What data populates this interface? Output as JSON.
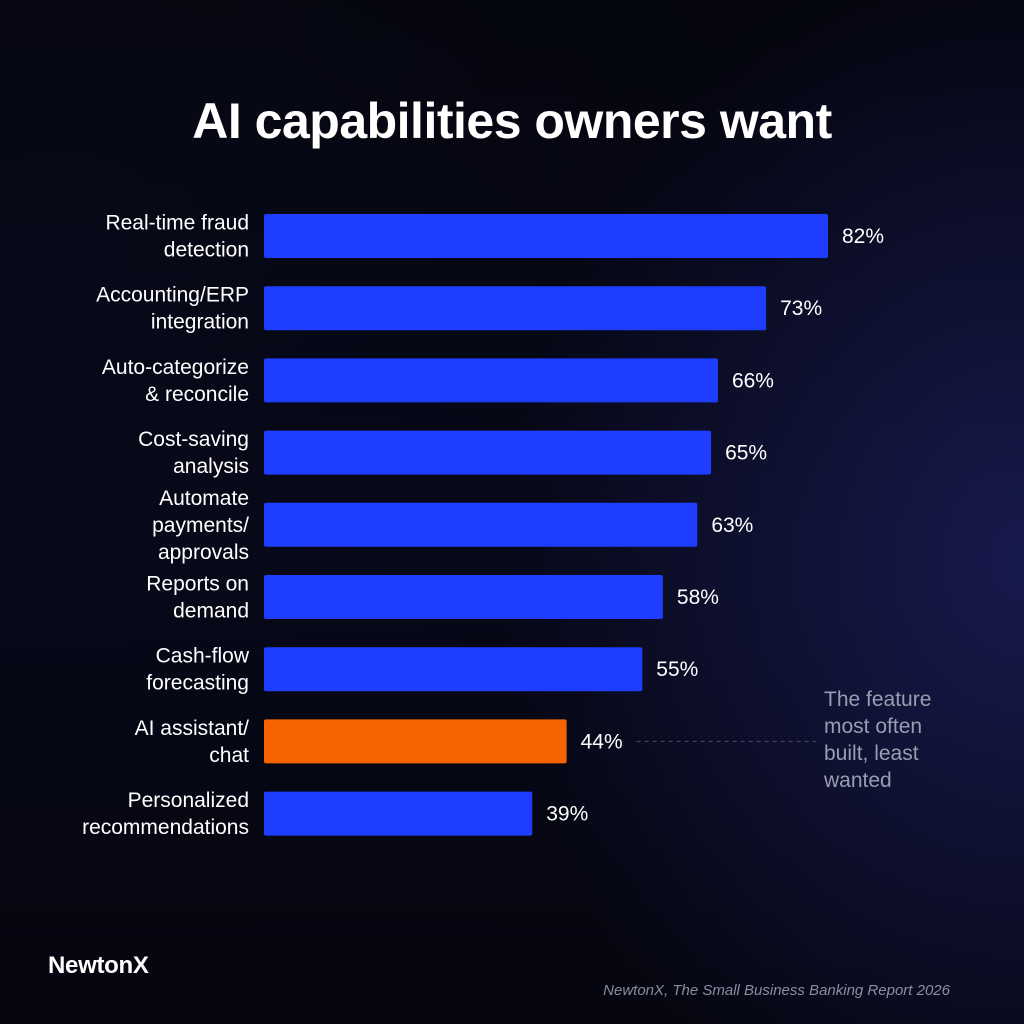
{
  "colors": {
    "bar": "#1f3dff",
    "highlight": "#f56400",
    "annotation_text": "#9a9cb0",
    "leader_line": "#4a4c66"
  },
  "annotation": {
    "lines": [
      "The feature",
      "most often",
      "built, least",
      "wanted"
    ],
    "target_category_index": 7
  },
  "brand": "NewtonX",
  "source": "NewtonX, The Small Business Banking Report 2026",
  "chart_data": {
    "type": "bar",
    "orientation": "horizontal",
    "title": "AI capabilities owners want",
    "unit": "%",
    "grid": false,
    "xlim": [
      0,
      100
    ],
    "categories": [
      [
        "Real-time fraud",
        "detection"
      ],
      [
        "Accounting/ERP",
        "integration"
      ],
      [
        "Auto-categorize",
        "& reconcile"
      ],
      [
        "Cost-saving",
        "analysis"
      ],
      [
        "Automate",
        "payments/",
        "approvals"
      ],
      [
        "Reports on",
        "demand"
      ],
      [
        "Cash-flow",
        "forecasting"
      ],
      [
        "AI assistant/",
        "chat"
      ],
      [
        "Personalized",
        "recommendations"
      ]
    ],
    "values": [
      82,
      73,
      66,
      65,
      63,
      58,
      55,
      44,
      39
    ],
    "value_labels": [
      "82%",
      "73%",
      "66%",
      "65%",
      "63%",
      "58%",
      "55%",
      "44%",
      "39%"
    ],
    "highlight_index": 7
  }
}
